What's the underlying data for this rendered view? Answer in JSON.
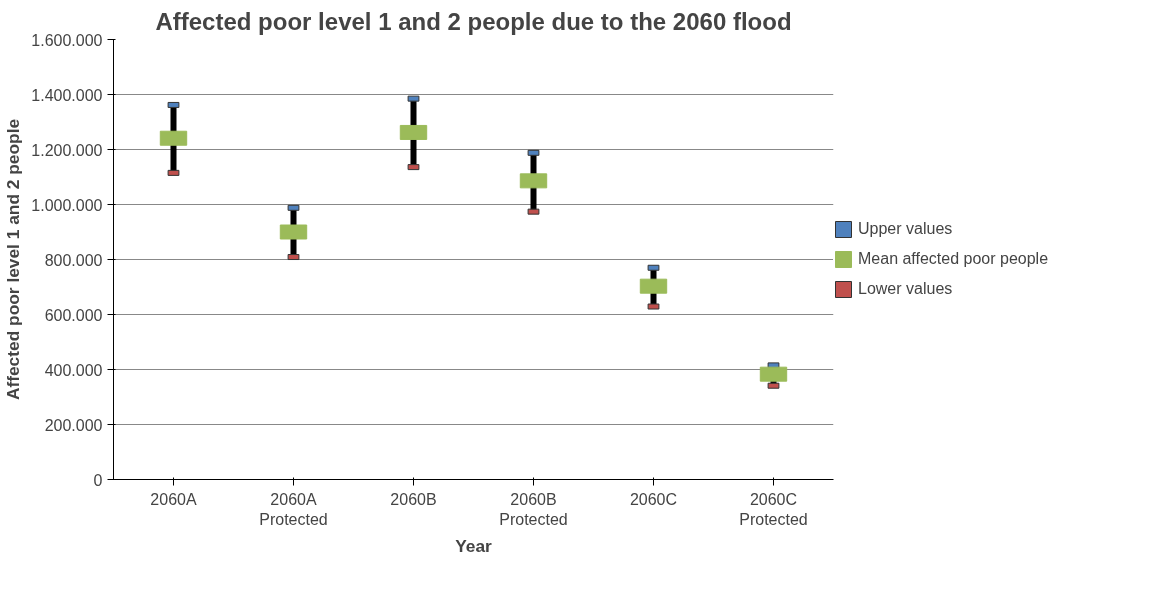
{
  "chart_data": {
    "type": "scatter",
    "title": "Affected poor level 1 and 2 people due to the 2060 flood",
    "xlabel": "Year",
    "ylabel": "Affected poor level 1 and 2 people",
    "categories": [
      "2060A",
      "2060A\nProtected",
      "2060B",
      "2060B\nProtected",
      "2060C",
      "2060C\nProtected"
    ],
    "series": [
      {
        "name": "Upper values",
        "color": "#4f81bd",
        "values": [
          1362000,
          988000,
          1385000,
          1188000,
          770000,
          415000
        ]
      },
      {
        "name": "Mean affected poor people",
        "color": "#9bbb59",
        "values": [
          1241000,
          900000,
          1262000,
          1086000,
          703000,
          383000
        ]
      },
      {
        "name": "Lower values",
        "color": "#c0504d",
        "values": [
          1115000,
          809000,
          1136000,
          974000,
          629000,
          341000
        ]
      }
    ],
    "ylim": [
      0,
      1600000
    ],
    "yticks": [
      0,
      {
        "value": 200000,
        "label": "200.000"
      },
      {
        "value": 400000,
        "label": "400.000"
      },
      {
        "value": 600000,
        "label": "600.000"
      },
      {
        "value": 800000,
        "label": "800.000"
      },
      {
        "value": 1000000,
        "label": "1.000.000"
      },
      {
        "value": 1200000,
        "label": "1.200.000"
      },
      {
        "value": 1400000,
        "label": "1.400.000"
      },
      {
        "value": 1600000,
        "label": "1.600.000"
      }
    ],
    "grid": "y",
    "legend": "right",
    "marker": "square"
  }
}
